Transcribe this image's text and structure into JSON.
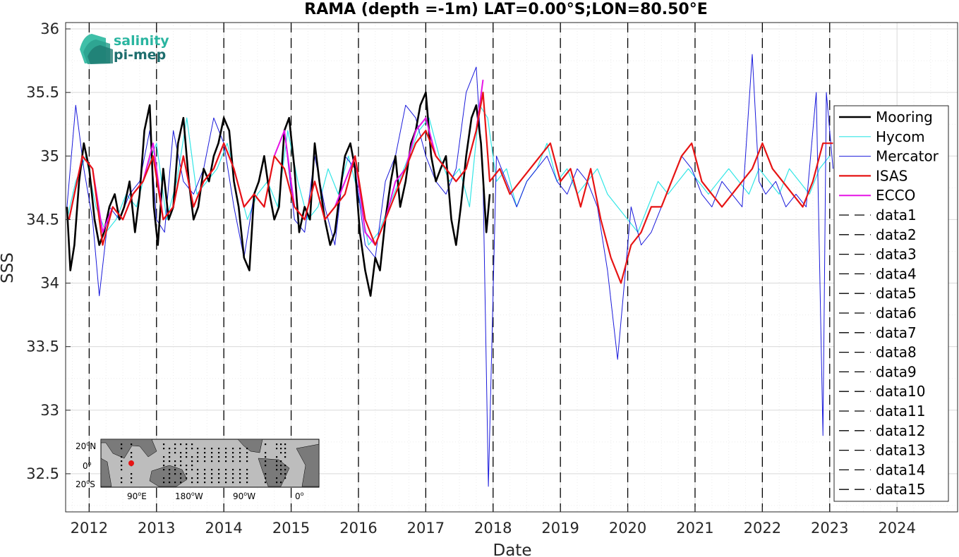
{
  "chart_data": {
    "type": "line",
    "title": "RAMA (depth =-1m) LAT=0.00°S;LON=80.50°E",
    "xlabel": "Date",
    "ylabel": "SSS",
    "xlim": [
      2011.65,
      2024.9
    ],
    "ylim": [
      32.2,
      36.05
    ],
    "x_ticks": [
      2012,
      2013,
      2014,
      2015,
      2016,
      2017,
      2018,
      2019,
      2020,
      2021,
      2022,
      2023,
      2024
    ],
    "x_tick_labels": [
      "2012",
      "2013",
      "2014",
      "2015",
      "2016",
      "2017",
      "2018",
      "2019",
      "2020",
      "2021",
      "2022",
      "2023",
      "2024"
    ],
    "y_ticks": [
      32.5,
      33,
      33.5,
      34,
      34.5,
      35,
      35.5,
      36
    ],
    "y_tick_labels": [
      "32.5",
      "33",
      "33.5",
      "34",
      "34.5",
      "35",
      "35.5",
      "36"
    ],
    "grid": true,
    "legend_position": "right",
    "vertical_dashed_lines_at": [
      2012,
      2013,
      2014,
      2015,
      2016,
      2017,
      2018,
      2019,
      2020,
      2021,
      2022,
      2023
    ],
    "series": [
      {
        "name": "Mooring",
        "color": "#000000",
        "width": 2.6,
        "x": [
          2011.67,
          2011.72,
          2011.78,
          2011.85,
          2011.92,
          2012.0,
          2012.08,
          2012.15,
          2012.22,
          2012.3,
          2012.38,
          2012.45,
          2012.52,
          2012.6,
          2012.68,
          2012.75,
          2012.82,
          2012.9,
          2012.96,
          2013.02,
          2013.1,
          2013.18,
          2013.25,
          2013.32,
          2013.4,
          2013.48,
          2013.55,
          2013.62,
          2013.7,
          2013.78,
          2013.85,
          2013.92,
          2014.0,
          2014.08,
          2014.15,
          2014.22,
          2014.3,
          2014.38,
          2014.45,
          2014.52,
          2014.6,
          2014.68,
          2014.75,
          2014.82,
          2014.9,
          2014.97,
          2015.05,
          2015.12,
          2015.2,
          2015.28,
          2015.35,
          2015.42,
          2015.5,
          2015.58,
          2015.65,
          2015.72,
          2015.8,
          2015.88,
          2015.95,
          2016.02,
          2016.1,
          2016.18,
          2016.25,
          2016.32,
          2016.4,
          2016.48,
          2016.55,
          2016.62,
          2016.7,
          2016.78,
          2016.85,
          2016.92,
          2017.0,
          2017.08,
          2017.15,
          2017.22,
          2017.3,
          2017.38,
          2017.45,
          2017.52,
          2017.6,
          2017.68,
          2017.75,
          2017.82,
          2017.9,
          2017.95
        ],
        "y": [
          34.6,
          34.1,
          34.3,
          34.8,
          35.1,
          34.9,
          34.5,
          34.3,
          34.4,
          34.6,
          34.7,
          34.5,
          34.6,
          34.8,
          34.4,
          34.7,
          35.2,
          35.4,
          34.6,
          34.3,
          34.9,
          34.5,
          34.6,
          35.1,
          35.3,
          34.8,
          34.5,
          34.6,
          34.9,
          34.8,
          35.0,
          35.1,
          35.3,
          35.2,
          34.8,
          34.6,
          34.2,
          34.1,
          34.7,
          34.8,
          35.0,
          34.7,
          34.5,
          34.6,
          35.2,
          35.3,
          34.9,
          34.4,
          34.6,
          34.5,
          35.1,
          34.8,
          34.5,
          34.3,
          34.4,
          34.7,
          35.0,
          35.1,
          34.9,
          34.4,
          34.1,
          33.9,
          34.2,
          34.1,
          34.5,
          34.8,
          35.0,
          34.6,
          34.8,
          35.1,
          35.2,
          35.4,
          35.5,
          35.0,
          34.8,
          34.9,
          35.0,
          34.5,
          34.3,
          34.6,
          35.0,
          35.3,
          35.4,
          35.1,
          34.4,
          34.7
        ]
      },
      {
        "name": "Hycom",
        "color": "#33e6e6",
        "width": 1.2,
        "x": [
          2011.67,
          2011.8,
          2011.95,
          2012.1,
          2012.25,
          2012.4,
          2012.55,
          2012.7,
          2012.85,
          2013.0,
          2013.15,
          2013.3,
          2013.45,
          2013.6,
          2013.75,
          2013.9,
          2014.05,
          2014.2,
          2014.35,
          2014.5,
          2014.65,
          2014.8,
          2014.95,
          2015.1,
          2015.25,
          2015.4,
          2015.55,
          2015.7,
          2015.85,
          2016.0,
          2016.15,
          2016.3,
          2016.45,
          2016.6,
          2016.75,
          2016.9,
          2017.05,
          2017.2,
          2017.35,
          2017.5,
          2017.65,
          2017.8,
          2017.92,
          2018.05,
          2018.2,
          2018.35,
          2018.5,
          2018.65,
          2018.8,
          2018.95,
          2019.1,
          2019.25,
          2019.4,
          2019.55,
          2019.7,
          2019.85,
          2020.0,
          2020.15,
          2020.3,
          2020.45,
          2020.6,
          2020.75,
          2020.9,
          2021.05,
          2021.2,
          2021.35,
          2021.5,
          2021.65,
          2021.8,
          2021.95,
          2022.1,
          2022.25,
          2022.4,
          2022.55,
          2022.7,
          2022.85,
          2023.0
        ],
        "y": [
          34.5,
          34.8,
          35.0,
          34.6,
          34.4,
          34.5,
          34.7,
          34.6,
          34.9,
          35.1,
          34.5,
          34.8,
          35.3,
          34.7,
          34.8,
          34.9,
          35.1,
          34.8,
          34.5,
          34.7,
          34.8,
          34.6,
          35.2,
          34.8,
          34.5,
          34.6,
          34.9,
          34.7,
          35.0,
          34.7,
          34.3,
          34.4,
          34.6,
          34.8,
          35.0,
          35.2,
          35.3,
          35.0,
          34.8,
          34.9,
          34.6,
          35.4,
          35.3,
          34.8,
          34.9,
          34.6,
          34.8,
          34.9,
          35.1,
          34.8,
          34.9,
          34.7,
          34.8,
          34.9,
          34.7,
          34.6,
          34.5,
          34.4,
          34.6,
          34.8,
          34.7,
          34.8,
          34.9,
          34.8,
          34.7,
          34.8,
          34.9,
          34.8,
          34.7,
          34.9,
          34.8,
          34.7,
          34.9,
          34.8,
          34.7,
          34.9,
          35.0
        ]
      },
      {
        "name": "Mercator",
        "color": "#1a1adb",
        "width": 1.0,
        "x": [
          2011.67,
          2011.8,
          2011.92,
          2012.05,
          2012.15,
          2012.3,
          2012.45,
          2012.6,
          2012.75,
          2012.9,
          2013.0,
          2013.12,
          2013.25,
          2013.4,
          2013.55,
          2013.7,
          2013.85,
          2014.0,
          2014.15,
          2014.3,
          2014.45,
          2014.6,
          2014.75,
          2014.9,
          2015.05,
          2015.2,
          2015.35,
          2015.5,
          2015.65,
          2015.8,
          2015.95,
          2016.1,
          2016.25,
          2016.4,
          2016.55,
          2016.7,
          2016.85,
          2017.0,
          2017.15,
          2017.3,
          2017.45,
          2017.6,
          2017.75,
          2017.85,
          2017.93,
          2018.05,
          2018.2,
          2018.35,
          2018.5,
          2018.65,
          2018.8,
          2018.95,
          2019.1,
          2019.25,
          2019.4,
          2019.55,
          2019.7,
          2019.85,
          2019.95,
          2020.05,
          2020.2,
          2020.35,
          2020.5,
          2020.65,
          2020.8,
          2020.95,
          2021.1,
          2021.25,
          2021.4,
          2021.55,
          2021.7,
          2021.85,
          2021.95,
          2022.05,
          2022.2,
          2022.35,
          2022.5,
          2022.65,
          2022.8,
          2022.9,
          2022.95,
          2023.05
        ],
        "y": [
          34.6,
          35.4,
          34.9,
          34.5,
          33.9,
          34.6,
          34.5,
          34.7,
          34.8,
          35.2,
          34.5,
          34.4,
          35.2,
          34.8,
          34.7,
          34.9,
          35.3,
          35.1,
          34.6,
          34.2,
          34.7,
          34.6,
          35.0,
          35.2,
          34.5,
          34.4,
          35.0,
          34.6,
          34.3,
          35.0,
          34.9,
          34.3,
          34.2,
          34.8,
          35.0,
          35.4,
          35.3,
          35.0,
          34.8,
          34.7,
          34.9,
          35.5,
          35.7,
          34.8,
          32.4,
          35.0,
          34.8,
          34.6,
          34.8,
          34.9,
          35.0,
          34.8,
          34.7,
          34.9,
          34.8,
          34.6,
          34.1,
          33.4,
          34.0,
          34.6,
          34.3,
          34.4,
          34.6,
          34.8,
          35.0,
          34.9,
          34.7,
          34.6,
          34.8,
          34.7,
          34.6,
          35.8,
          34.8,
          34.7,
          34.8,
          34.6,
          34.7,
          34.6,
          35.5,
          32.8,
          35.5,
          34.9
        ]
      },
      {
        "name": "ISAS",
        "color": "#e61414",
        "width": 2.2,
        "x": [
          2011.7,
          2011.9,
          2012.05,
          2012.2,
          2012.35,
          2012.5,
          2012.65,
          2012.8,
          2012.95,
          2013.1,
          2013.25,
          2013.4,
          2013.55,
          2013.7,
          2013.85,
          2014.0,
          2014.15,
          2014.3,
          2014.45,
          2014.6,
          2014.75,
          2014.9,
          2015.05,
          2015.2,
          2015.35,
          2015.5,
          2015.65,
          2015.8,
          2015.95,
          2016.1,
          2016.25,
          2016.4,
          2016.55,
          2016.7,
          2016.85,
          2017.0,
          2017.15,
          2017.3,
          2017.45,
          2017.6,
          2017.75,
          2017.85,
          2017.95,
          2018.1,
          2018.25,
          2018.4,
          2018.55,
          2018.7,
          2018.85,
          2019.0,
          2019.15,
          2019.3,
          2019.45,
          2019.6,
          2019.75,
          2019.9,
          2020.05,
          2020.2,
          2020.35,
          2020.5,
          2020.65,
          2020.8,
          2020.95,
          2021.1,
          2021.25,
          2021.4,
          2021.55,
          2021.7,
          2021.85,
          2022.0,
          2022.15,
          2022.3,
          2022.45,
          2022.6,
          2022.75,
          2022.9,
          2023.05
        ],
        "y": [
          34.5,
          35.0,
          34.9,
          34.3,
          34.6,
          34.5,
          34.7,
          34.8,
          35.0,
          34.5,
          34.6,
          35.0,
          34.6,
          34.8,
          34.9,
          35.1,
          34.9,
          34.6,
          34.7,
          34.6,
          35.0,
          34.9,
          34.6,
          34.5,
          34.8,
          34.5,
          34.6,
          34.7,
          35.0,
          34.5,
          34.3,
          34.5,
          34.7,
          34.9,
          35.1,
          35.2,
          35.0,
          34.9,
          34.8,
          34.9,
          35.2,
          35.5,
          34.8,
          34.9,
          34.7,
          34.8,
          34.9,
          35.0,
          35.1,
          34.8,
          34.9,
          34.6,
          34.9,
          34.5,
          34.2,
          34.0,
          34.3,
          34.4,
          34.6,
          34.6,
          34.8,
          35.0,
          35.1,
          34.8,
          34.7,
          34.6,
          34.7,
          34.8,
          34.9,
          35.1,
          34.9,
          34.8,
          34.7,
          34.6,
          34.8,
          35.1,
          35.1
        ]
      },
      {
        "name": "ECCO",
        "color": "#e614e6",
        "width": 2.0,
        "x": [
          2011.7,
          2011.9,
          2012.05,
          2012.2,
          2012.35,
          2012.5,
          2012.65,
          2012.8,
          2012.95,
          2013.1,
          2013.25,
          2013.4,
          2013.55,
          2013.7,
          2013.85,
          2014.0,
          2014.15,
          2014.3,
          2014.45,
          2014.6,
          2014.75,
          2014.9,
          2015.05,
          2015.2,
          2015.35,
          2015.5,
          2015.65,
          2015.8,
          2015.95,
          2016.1,
          2016.25,
          2016.4,
          2016.55,
          2016.7,
          2016.85,
          2017.0,
          2017.15,
          2017.3,
          2017.45,
          2017.6,
          2017.75,
          2017.85
        ],
        "y": [
          34.5,
          35.0,
          34.9,
          34.4,
          34.6,
          34.5,
          34.7,
          34.8,
          35.1,
          34.5,
          34.6,
          35.0,
          34.6,
          34.8,
          34.9,
          35.1,
          34.9,
          34.6,
          34.7,
          34.6,
          35.0,
          35.2,
          34.6,
          34.5,
          34.8,
          34.5,
          34.6,
          34.8,
          35.0,
          34.4,
          34.3,
          34.5,
          34.8,
          34.9,
          35.2,
          35.3,
          35.0,
          34.9,
          34.8,
          34.9,
          35.2,
          35.6
        ]
      }
    ],
    "dashed_series": [
      "data1",
      "data2",
      "data3",
      "data4",
      "data5",
      "data6",
      "data7",
      "data8",
      "data9",
      "data10",
      "data11",
      "data12",
      "data13",
      "data14",
      "data15"
    ]
  },
  "logo": {
    "line1": "salinity",
    "line2": "pi-mep",
    "color1": "#2ab5a0",
    "color2": "#1e6e6e"
  },
  "inset_map": {
    "lat_labels": [
      "20",
      "0",
      "20"
    ],
    "lat_suffixes": [
      "N",
      "",
      "S"
    ],
    "lon_labels": [
      "90",
      "180",
      "90",
      "0"
    ],
    "lon_suffixes": [
      "E",
      "W",
      "W",
      ""
    ],
    "marker_color": "#e61414"
  }
}
